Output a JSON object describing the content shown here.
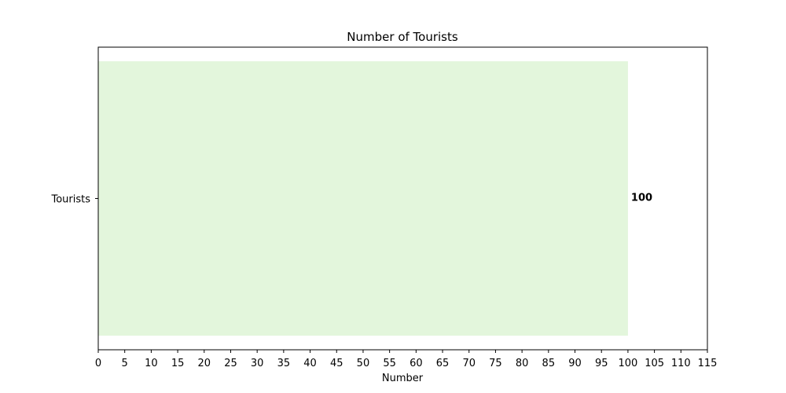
{
  "chart_data": {
    "type": "bar",
    "orientation": "horizontal",
    "title": "Number of Tourists",
    "xlabel": "Number",
    "ylabel": "",
    "categories": [
      "Tourists"
    ],
    "values": [
      100
    ],
    "data_labels": [
      "100"
    ],
    "xlim": [
      0,
      115
    ],
    "x_ticks": [
      0,
      5,
      10,
      15,
      20,
      25,
      30,
      35,
      40,
      45,
      50,
      55,
      60,
      65,
      70,
      75,
      80,
      85,
      90,
      95,
      100,
      105,
      110,
      115
    ],
    "grid": false,
    "legend": "none",
    "colors": {
      "bar": "#e3f6dc",
      "axis": "#000000",
      "background": "#ffffff"
    }
  }
}
